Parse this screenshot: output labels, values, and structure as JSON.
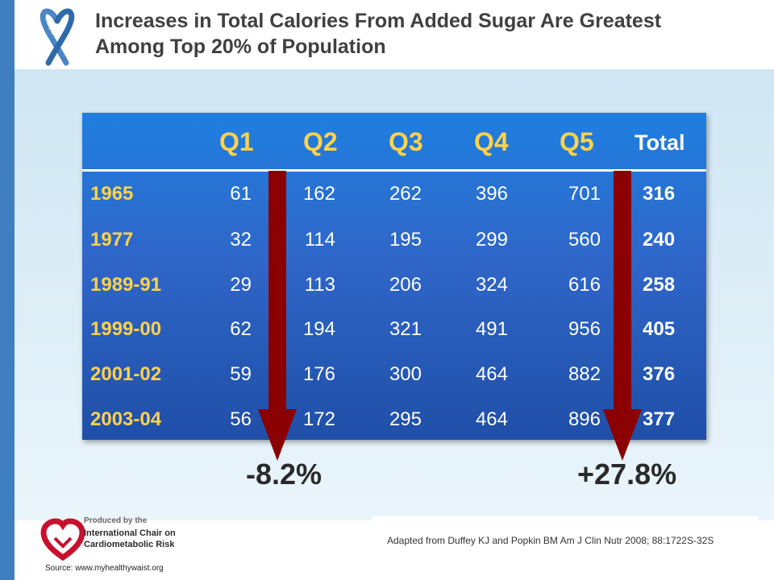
{
  "title_lines": [
    "Increases in Total Calories From Added Sugar Are Greatest",
    "Among Top 20% of Population"
  ],
  "chart_data": {
    "type": "table",
    "columns": [
      "Q1",
      "Q2",
      "Q3",
      "Q4",
      "Q5",
      "Total"
    ],
    "rows": [
      {
        "label": "1965",
        "values": [
          61,
          162,
          262,
          396,
          701
        ],
        "total": 316
      },
      {
        "label": "1977",
        "values": [
          32,
          114,
          195,
          299,
          560
        ],
        "total": 240
      },
      {
        "label": "1989-91",
        "values": [
          29,
          113,
          206,
          324,
          616
        ],
        "total": 258
      },
      {
        "label": "1999-00",
        "values": [
          62,
          194,
          321,
          491,
          956
        ],
        "total": 405
      },
      {
        "label": "2001-02",
        "values": [
          59,
          176,
          300,
          464,
          882
        ],
        "total": 376
      },
      {
        "label": "2003-04",
        "values": [
          56,
          172,
          295,
          464,
          896
        ],
        "total": 377
      }
    ],
    "annotations": {
      "q1_change": "-8.2%",
      "q5_change": "+27.8%"
    }
  },
  "logo": {
    "line1": "Produced by the",
    "line2": "International Chair on",
    "line3": "Cardiometabolic Risk"
  },
  "source": "Source: www.myhealthywaist.org",
  "citation": "Adapted from Duffey KJ and Popkin BM Am J Clin Nutr 2008;   88:1722S-32S",
  "colors": {
    "row_label": "#ffd24a",
    "arrow": "#8b0000",
    "table_top": "#1f7fe0",
    "table_bottom": "#1f4fa8"
  }
}
